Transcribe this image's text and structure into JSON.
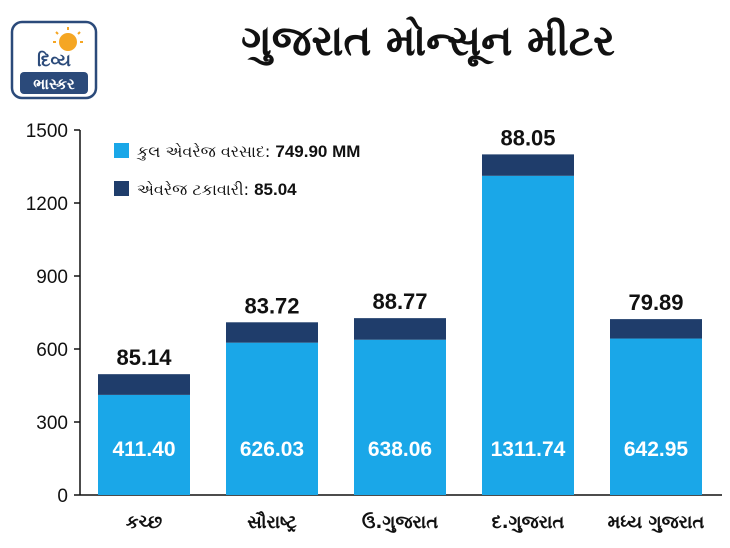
{
  "logo": {
    "line1": "દિવ્ય",
    "line2": "ભાસ્કર",
    "brand_color": "#2b4a7a",
    "sun_color": "#f5a623"
  },
  "title": "ગુજરાત મોન્સૂન મીટર",
  "legend": {
    "items": [
      {
        "label": "કુલ એવરેજ વરસાદ:",
        "value": "749.90 MM",
        "color": "#1aa7e8"
      },
      {
        "label": "એવરેજ ટકાવારી:",
        "value": "85.04",
        "color": "#1f3d6b"
      }
    ]
  },
  "chart_data": {
    "type": "bar",
    "categories": [
      "કચ્છ",
      "સૌરાષ્ટ્ર",
      "ઉ.ગુજરાત",
      "દ.ગુજરાત",
      "મધ્ય ગુજરાત"
    ],
    "series": [
      {
        "name": "કુલ એવરેજ વરસાદ",
        "values": [
          411.4,
          626.03,
          638.06,
          1311.74,
          642.95
        ],
        "labels": [
          "411.40",
          "626.03",
          "638.06",
          "1311.74",
          "642.95"
        ],
        "color": "#1aa7e8"
      },
      {
        "name": "એવરેજ ટકાવારી",
        "values": [
          85.14,
          83.72,
          88.77,
          88.05,
          79.89
        ],
        "labels": [
          "85.14",
          "83.72",
          "88.77",
          "88.05",
          "79.89"
        ],
        "color": "#1f3d6b"
      }
    ],
    "stacked": true,
    "ylim": [
      0,
      1500
    ],
    "yticks": [
      0,
      300,
      600,
      900,
      1200,
      1500
    ],
    "ytick_labels": [
      "0",
      "300",
      "600",
      "900",
      "1200",
      "1500"
    ],
    "grid": false,
    "legend_position": "top-left"
  }
}
